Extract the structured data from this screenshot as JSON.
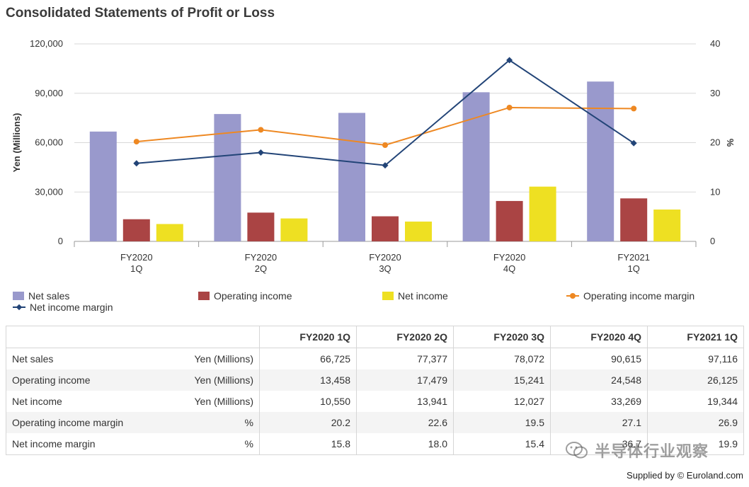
{
  "title": "Consolidated Statements of Profit or Loss",
  "chart_data": {
    "type": "bar",
    "categories": [
      [
        "FY2020",
        "1Q"
      ],
      [
        "FY2020",
        "2Q"
      ],
      [
        "FY2020",
        "3Q"
      ],
      [
        "FY2020",
        "4Q"
      ],
      [
        "FY2021",
        "1Q"
      ]
    ],
    "series": [
      {
        "name": "Net sales",
        "kind": "bar",
        "axis": "left",
        "color": "#9999cc",
        "values": [
          66725,
          77377,
          78072,
          90615,
          97116
        ]
      },
      {
        "name": "Operating income",
        "kind": "bar",
        "axis": "left",
        "color": "#aa4444",
        "values": [
          13458,
          17479,
          15241,
          24548,
          26125
        ]
      },
      {
        "name": "Net income",
        "kind": "bar",
        "axis": "left",
        "color": "#eee022",
        "values": [
          10550,
          13941,
          12027,
          33269,
          19344
        ]
      },
      {
        "name": "Operating income margin",
        "kind": "line",
        "marker": "circle",
        "axis": "right",
        "color": "#ee8822",
        "values": [
          20.2,
          22.6,
          19.5,
          27.1,
          26.9
        ]
      },
      {
        "name": "Net income margin",
        "kind": "line",
        "marker": "diamond",
        "axis": "right",
        "color": "#224477",
        "values": [
          15.8,
          18.0,
          15.4,
          36.7,
          19.9
        ]
      }
    ],
    "ylabel": "Yen (Millions)",
    "ylabel_right": "%",
    "ylim": [
      0,
      120000
    ],
    "ylim_right": [
      0,
      40
    ],
    "yticks": [
      "0",
      "30,000",
      "60,000",
      "90,000",
      "120,000"
    ],
    "yticks_right": [
      "0",
      "10",
      "20",
      "30",
      "40"
    ],
    "grid": true,
    "legend_position": "bottom"
  },
  "legend": {
    "items": [
      "Net sales",
      "Operating income",
      "Net income",
      "Operating income margin",
      "Net income margin"
    ]
  },
  "table": {
    "headers": [
      "FY2020 1Q",
      "FY2020 2Q",
      "FY2020 3Q",
      "FY2020 4Q",
      "FY2021 1Q"
    ],
    "rows": [
      {
        "name": "Net sales",
        "unit": "Yen (Millions)",
        "values": [
          "66,725",
          "77,377",
          "78,072",
          "90,615",
          "97,116"
        ]
      },
      {
        "name": "Operating income",
        "unit": "Yen (Millions)",
        "values": [
          "13,458",
          "17,479",
          "15,241",
          "24,548",
          "26,125"
        ]
      },
      {
        "name": "Net income",
        "unit": "Yen (Millions)",
        "values": [
          "10,550",
          "13,941",
          "12,027",
          "33,269",
          "19,344"
        ]
      },
      {
        "name": "Operating income margin",
        "unit": "%",
        "values": [
          "20.2",
          "22.6",
          "19.5",
          "27.1",
          "26.9"
        ]
      },
      {
        "name": "Net income margin",
        "unit": "%",
        "values": [
          "15.8",
          "18.0",
          "15.4",
          "36.7",
          "19.9"
        ]
      }
    ]
  },
  "watermark": "半导体行业观察",
  "supplied_by": "Supplied by © Euroland.com"
}
